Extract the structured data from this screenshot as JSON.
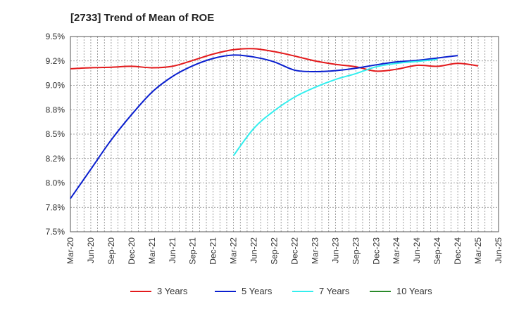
{
  "chart_data": {
    "type": "line",
    "title": "[2733]  Trend of Mean of ROE",
    "xlabel": "",
    "ylabel": "",
    "ylim": [
      7.5,
      9.5
    ],
    "y_ticks": [
      "7.5%",
      "7.8%",
      "8.0%",
      "8.2%",
      "8.5%",
      "8.8%",
      "9.0%",
      "9.2%",
      "9.5%"
    ],
    "x_ticks": [
      "Mar-20",
      "Jun-20",
      "Sep-20",
      "Dec-20",
      "Mar-21",
      "Jun-21",
      "Sep-21",
      "Dec-21",
      "Mar-22",
      "Jun-22",
      "Sep-22",
      "Dec-22",
      "Mar-23",
      "Jun-23",
      "Sep-23",
      "Dec-23",
      "Mar-24",
      "Jun-24",
      "Sep-24",
      "Dec-24",
      "Mar-25",
      "Jun-25"
    ],
    "grid": true,
    "legend_position": "bottom",
    "series": [
      {
        "name": "3 Years",
        "color": "#e31a1c",
        "values": [
          9.17,
          9.18,
          9.185,
          9.195,
          9.18,
          9.195,
          9.255,
          9.32,
          9.365,
          9.375,
          9.345,
          9.3,
          9.25,
          9.215,
          9.19,
          9.145,
          9.165,
          9.205,
          9.195,
          9.225,
          9.2
        ]
      },
      {
        "name": "5 Years",
        "color": "#0a1fcf",
        "values": [
          7.84,
          8.14,
          8.44,
          8.7,
          8.93,
          9.09,
          9.2,
          9.275,
          9.31,
          9.29,
          9.24,
          9.155,
          9.14,
          9.15,
          9.175,
          9.21,
          9.24,
          9.255,
          9.28,
          9.305,
          null
        ]
      },
      {
        "name": "7 Years",
        "color": "#33eeee",
        "values": [
          null,
          null,
          null,
          null,
          null,
          null,
          null,
          null,
          8.28,
          8.56,
          8.74,
          8.88,
          8.98,
          9.06,
          9.12,
          9.19,
          9.225,
          9.245,
          9.265,
          null,
          null
        ]
      },
      {
        "name": "10 Years",
        "color": "#2a8a2a",
        "values": [
          null,
          null,
          null,
          null,
          null,
          null,
          null,
          null,
          null,
          null,
          null,
          null,
          null,
          null,
          null,
          null,
          null,
          null,
          null,
          null,
          null
        ]
      }
    ]
  }
}
